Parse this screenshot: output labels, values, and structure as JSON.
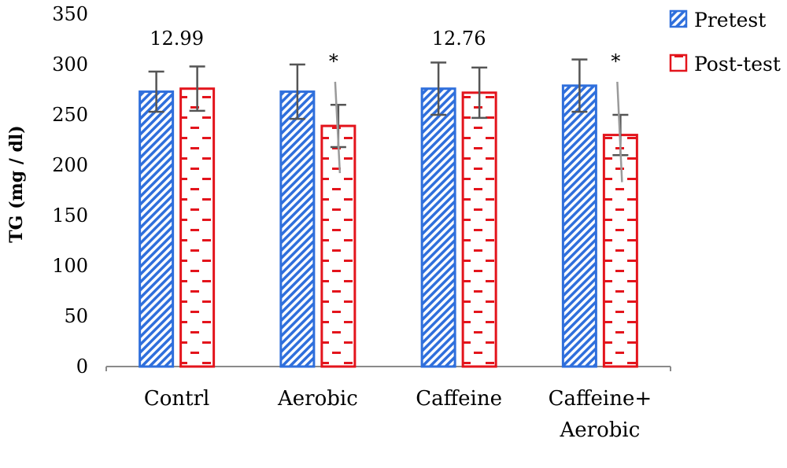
{
  "chart_data": {
    "type": "bar",
    "ylabel": "TG (mg / dl)",
    "ylim": [
      0,
      350
    ],
    "yticks": [
      0,
      50,
      100,
      150,
      200,
      250,
      300,
      350
    ],
    "categories": [
      [
        "Contrl"
      ],
      [
        "Aerobic"
      ],
      [
        "Caffeine"
      ],
      [
        "Caffeine+",
        "Aerobic"
      ]
    ],
    "series": [
      {
        "name": "Pretest",
        "color": "#2f6fdc",
        "pattern": "diagonal-stripes",
        "values": [
          273,
          273,
          276,
          279
        ],
        "errors": [
          20,
          27,
          26,
          26
        ]
      },
      {
        "name": "Post-test",
        "color": "#e3141c",
        "pattern": "dashes",
        "values": [
          276,
          239,
          272,
          230
        ],
        "errors": [
          22,
          21,
          25,
          20
        ]
      }
    ],
    "annotations": [
      {
        "category": 0,
        "series": 0.5,
        "text": "12.99"
      },
      {
        "category": 1,
        "series": 1,
        "text": "*"
      },
      {
        "category": 2,
        "series": 0.5,
        "text": "12.76"
      },
      {
        "category": 3,
        "series": 1,
        "text": "*"
      }
    ],
    "legend_position": "top-right",
    "grid": false
  }
}
